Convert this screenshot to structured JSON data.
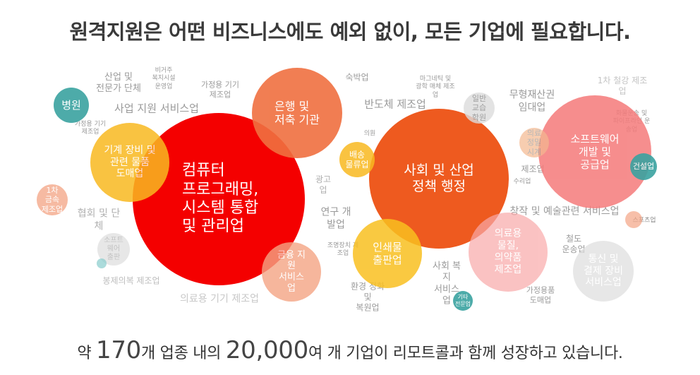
{
  "title": "원격지원은 어떤 비즈니스에도 예외 없이, 모든 기업에 필요합니다.",
  "footer": {
    "prefix": "약 ",
    "count": "170",
    "mid": "개 업종 내의 ",
    "companies": "20,000",
    "suffix": "여 개 기업이 리모트콜과 함께 성장하고 있습니다."
  },
  "bubbles": [
    {
      "text": "컴퓨터\n프로그래밍,\n시스템 통합\n및 관리업",
      "color": "#f40000",
      "opacity": 1
    },
    {
      "text": "사회 및 산업\n정책 행정",
      "color": "#ee5a1f",
      "opacity": 1
    },
    {
      "text": "소프트웨어\n개발 및\n공급업",
      "color": "#f57a7a",
      "opacity": 0.85
    },
    {
      "text": "은행 및\n저축 기관",
      "color": "#f07040",
      "opacity": 0.9
    },
    {
      "text": "기계 장비 및\n관련 물품\n도매업",
      "color": "#f9b920",
      "opacity": 0.85
    },
    {
      "text": "인쇄물\n출판업",
      "color": "#f9c020",
      "opacity": 0.85
    },
    {
      "text": "의료용\n물질,\n의약품\n제조업",
      "color": "#f9a9a9",
      "opacity": 0.7
    },
    {
      "text": "통신 및\n결제 장비\n서비스업",
      "color": "#dddddd",
      "opacity": 0.7
    },
    {
      "text": "금융 지\n원\n서비스\n업",
      "color": "#f4a484",
      "opacity": 0.8
    },
    {
      "text": "병원",
      "color": "#3aa3a0",
      "opacity": 0.9
    },
    {
      "text": "배송\n물류업",
      "color": "#f9b920",
      "opacity": 0.85
    },
    {
      "text": "1차\n금속\n제조업",
      "color": "#f4a484",
      "opacity": 0.75
    },
    {
      "text": "건설업",
      "color": "#3aa3a0",
      "opacity": 0.9
    },
    {
      "text": "일반\n교습\n학원",
      "color": "#dddddd",
      "opacity": 0.8
    },
    {
      "text": "의료\n정밀\n시계",
      "color": "#f4b890",
      "opacity": 0.7
    },
    {
      "text": "소프트\n웨어\n출판",
      "color": "#dddddd",
      "opacity": 0.7
    },
    {
      "text": "기타\n전문업",
      "color": "#3aa3a0",
      "opacity": 0.9
    },
    {
      "text": "",
      "color": "#f4a484",
      "opacity": 0.7
    },
    {
      "text": "",
      "color": "#88cccc",
      "opacity": 0.7
    }
  ],
  "labels": [
    "산업 및\n전문가 단체",
    "비거주\n복지시설\n운영업",
    "가정용 기기\n제조업",
    "숙박업",
    "마그네틱 및\n광학 매체 제조\n업",
    "1차 철강 제조\n업",
    "사업 지원 서비스업",
    "반도체 제조업",
    "무형재산권\n임대업",
    "가정용 기기\n제조업",
    "의원",
    "화물운송 및\n파이프라인 운\n송업",
    "광고\n업",
    "제조업",
    "수리업",
    "협회 및 단\n체",
    "연구 개\n발업",
    "창작 및 예술관련 서비스업",
    "스포츠업",
    "철도\n운송업",
    "조명장치 제\n조업",
    "사회 복\n지\n서비스\n업",
    "봉제의복 제조업",
    "의료용 기기 제조업",
    "환경 정화\n및\n복원업",
    "가정용품\n도매업"
  ]
}
